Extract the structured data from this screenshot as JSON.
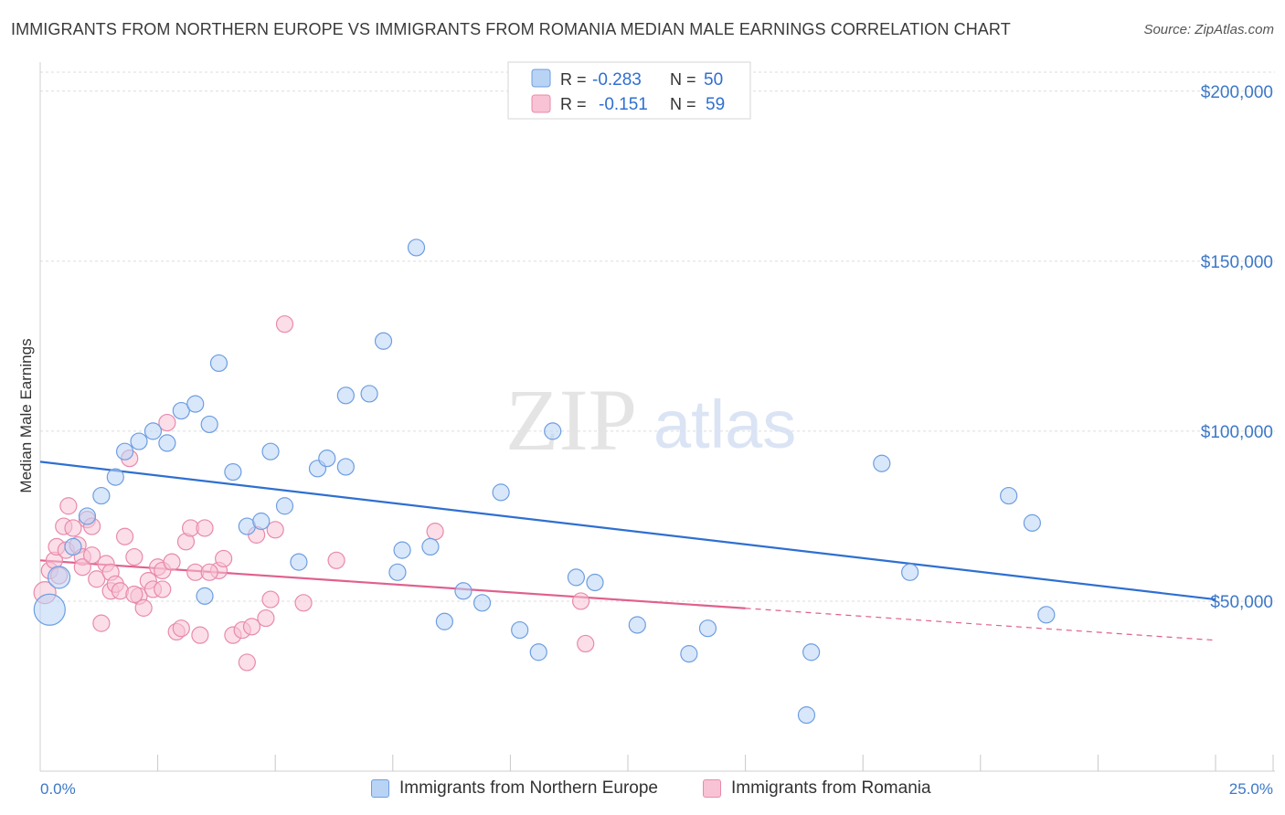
{
  "title": "IMMIGRANTS FROM NORTHERN EUROPE VS IMMIGRANTS FROM ROMANIA MEDIAN MALE EARNINGS CORRELATION CHART",
  "source": "Source: ZipAtlas.com",
  "watermark": {
    "zip": "ZIP",
    "atlas": "atlas"
  },
  "colors": {
    "blue_fill": "#b9d3f5",
    "blue_stroke": "#6d9ee0",
    "blue_line": "#2f6fd0",
    "pink_fill": "#f8c3d5",
    "pink_stroke": "#e88aab",
    "pink_line": "#e0608e",
    "axis_text": "#3c78c8",
    "grid": "#dcdcdc"
  },
  "legend": {
    "rows": [
      {
        "r_label": "R =",
        "r_value": "-0.283",
        "n_label": "N =",
        "n_value": "50"
      },
      {
        "r_label": "R =",
        "r_value": "-0.151",
        "n_label": "N =",
        "n_value": "59"
      }
    ]
  },
  "chart_data": {
    "type": "scatter",
    "title": "IMMIGRANTS FROM NORTHERN EUROPE VS IMMIGRANTS FROM ROMANIA MEDIAN MALE EARNINGS CORRELATION CHART",
    "xlabel": "",
    "ylabel": "Median Male Earnings",
    "xlim": [
      0,
      25
    ],
    "ylim": [
      0,
      208000
    ],
    "x_tick_labels": {
      "min": "0.0%",
      "max": "25.0%"
    },
    "y_ticks": [
      {
        "value": 50000,
        "label": "$50,000"
      },
      {
        "value": 100000,
        "label": "$100,000"
      },
      {
        "value": 150000,
        "label": "$150,000"
      },
      {
        "value": 200000,
        "label": "$200,000"
      }
    ],
    "grid": true,
    "series": [
      {
        "name": "Immigrants from Northern Europe",
        "color": "blue",
        "r": -0.283,
        "n": 50,
        "trend": {
          "x": [
            0,
            25
          ],
          "y": [
            91000,
            50500
          ],
          "dashed_from": null
        },
        "points": [
          {
            "x": 0.2,
            "y": 47500,
            "big": 2
          },
          {
            "x": 0.4,
            "y": 57000,
            "big": 1
          },
          {
            "x": 0.7,
            "y": 66000
          },
          {
            "x": 1.0,
            "y": 75000
          },
          {
            "x": 1.3,
            "y": 81000
          },
          {
            "x": 1.6,
            "y": 86500
          },
          {
            "x": 1.8,
            "y": 94000
          },
          {
            "x": 2.1,
            "y": 97000
          },
          {
            "x": 2.4,
            "y": 100000
          },
          {
            "x": 2.7,
            "y": 96500
          },
          {
            "x": 3.0,
            "y": 106000
          },
          {
            "x": 3.3,
            "y": 108000
          },
          {
            "x": 3.6,
            "y": 102000
          },
          {
            "x": 3.8,
            "y": 120000
          },
          {
            "x": 4.1,
            "y": 88000
          },
          {
            "x": 4.4,
            "y": 72000
          },
          {
            "x": 4.7,
            "y": 73500
          },
          {
            "x": 4.9,
            "y": 94000
          },
          {
            "x": 5.2,
            "y": 78000
          },
          {
            "x": 5.5,
            "y": 61500
          },
          {
            "x": 5.9,
            "y": 89000
          },
          {
            "x": 6.1,
            "y": 92000
          },
          {
            "x": 6.5,
            "y": 89500
          },
          {
            "x": 6.5,
            "y": 110500
          },
          {
            "x": 7.0,
            "y": 111000
          },
          {
            "x": 7.3,
            "y": 126500
          },
          {
            "x": 7.6,
            "y": 58500
          },
          {
            "x": 7.7,
            "y": 65000
          },
          {
            "x": 8.0,
            "y": 154000
          },
          {
            "x": 8.3,
            "y": 66000
          },
          {
            "x": 8.6,
            "y": 44000
          },
          {
            "x": 9.0,
            "y": 53000
          },
          {
            "x": 9.4,
            "y": 49500
          },
          {
            "x": 9.8,
            "y": 82000
          },
          {
            "x": 10.2,
            "y": 41500
          },
          {
            "x": 10.6,
            "y": 35000
          },
          {
            "x": 10.9,
            "y": 100000
          },
          {
            "x": 11.4,
            "y": 57000
          },
          {
            "x": 11.8,
            "y": 55500
          },
          {
            "x": 12.7,
            "y": 43000
          },
          {
            "x": 13.8,
            "y": 34500
          },
          {
            "x": 14.2,
            "y": 42000
          },
          {
            "x": 16.4,
            "y": 35000
          },
          {
            "x": 16.3,
            "y": 16500
          },
          {
            "x": 17.9,
            "y": 90500
          },
          {
            "x": 18.5,
            "y": 58500
          },
          {
            "x": 20.6,
            "y": 81000
          },
          {
            "x": 21.1,
            "y": 73000
          },
          {
            "x": 21.4,
            "y": 46000
          },
          {
            "x": 3.5,
            "y": 51500
          }
        ]
      },
      {
        "name": "Immigrants from Romania",
        "color": "pink",
        "r": -0.151,
        "n": 59,
        "trend": {
          "x": [
            0,
            25
          ],
          "y": [
            62000,
            38500
          ],
          "dashed_from": 15
        },
        "points": [
          {
            "x": 0.1,
            "y": 52500,
            "big": 1
          },
          {
            "x": 0.2,
            "y": 59000
          },
          {
            "x": 0.3,
            "y": 62000
          },
          {
            "x": 0.35,
            "y": 66000
          },
          {
            "x": 0.5,
            "y": 72000
          },
          {
            "x": 0.55,
            "y": 65000
          },
          {
            "x": 0.6,
            "y": 78000
          },
          {
            "x": 0.7,
            "y": 71500
          },
          {
            "x": 0.8,
            "y": 66500
          },
          {
            "x": 0.9,
            "y": 63000
          },
          {
            "x": 1.0,
            "y": 74000
          },
          {
            "x": 1.1,
            "y": 72000
          },
          {
            "x": 1.2,
            "y": 56500
          },
          {
            "x": 1.3,
            "y": 43500
          },
          {
            "x": 1.4,
            "y": 61000
          },
          {
            "x": 1.5,
            "y": 58500
          },
          {
            "x": 1.5,
            "y": 53000
          },
          {
            "x": 1.6,
            "y": 55000
          },
          {
            "x": 1.8,
            "y": 69000
          },
          {
            "x": 1.9,
            "y": 92000
          },
          {
            "x": 2.0,
            "y": 63000
          },
          {
            "x": 2.1,
            "y": 51500
          },
          {
            "x": 2.2,
            "y": 48000
          },
          {
            "x": 2.3,
            "y": 56000
          },
          {
            "x": 2.4,
            "y": 53500
          },
          {
            "x": 2.5,
            "y": 60000
          },
          {
            "x": 2.6,
            "y": 59000
          },
          {
            "x": 2.7,
            "y": 102500
          },
          {
            "x": 2.8,
            "y": 61500
          },
          {
            "x": 2.9,
            "y": 41000
          },
          {
            "x": 3.0,
            "y": 42000
          },
          {
            "x": 3.1,
            "y": 67500
          },
          {
            "x": 3.2,
            "y": 71500
          },
          {
            "x": 3.3,
            "y": 58500
          },
          {
            "x": 3.4,
            "y": 40000
          },
          {
            "x": 3.5,
            "y": 71500
          },
          {
            "x": 3.8,
            "y": 59000
          },
          {
            "x": 3.9,
            "y": 62500
          },
          {
            "x": 4.1,
            "y": 40000
          },
          {
            "x": 4.3,
            "y": 41500
          },
          {
            "x": 4.4,
            "y": 32000
          },
          {
            "x": 4.5,
            "y": 42500
          },
          {
            "x": 4.6,
            "y": 69500
          },
          {
            "x": 4.8,
            "y": 45000
          },
          {
            "x": 4.9,
            "y": 50500
          },
          {
            "x": 5.0,
            "y": 71000
          },
          {
            "x": 5.2,
            "y": 131500
          },
          {
            "x": 5.6,
            "y": 49500
          },
          {
            "x": 6.3,
            "y": 62000
          },
          {
            "x": 8.4,
            "y": 70500
          },
          {
            "x": 11.5,
            "y": 50000
          },
          {
            "x": 11.6,
            "y": 37500
          },
          {
            "x": 0.9,
            "y": 60000
          },
          {
            "x": 1.7,
            "y": 53000
          },
          {
            "x": 2.6,
            "y": 53500
          },
          {
            "x": 0.4,
            "y": 57500
          },
          {
            "x": 1.1,
            "y": 63500
          },
          {
            "x": 2.0,
            "y": 52000
          },
          {
            "x": 3.6,
            "y": 58500
          }
        ]
      }
    ]
  }
}
